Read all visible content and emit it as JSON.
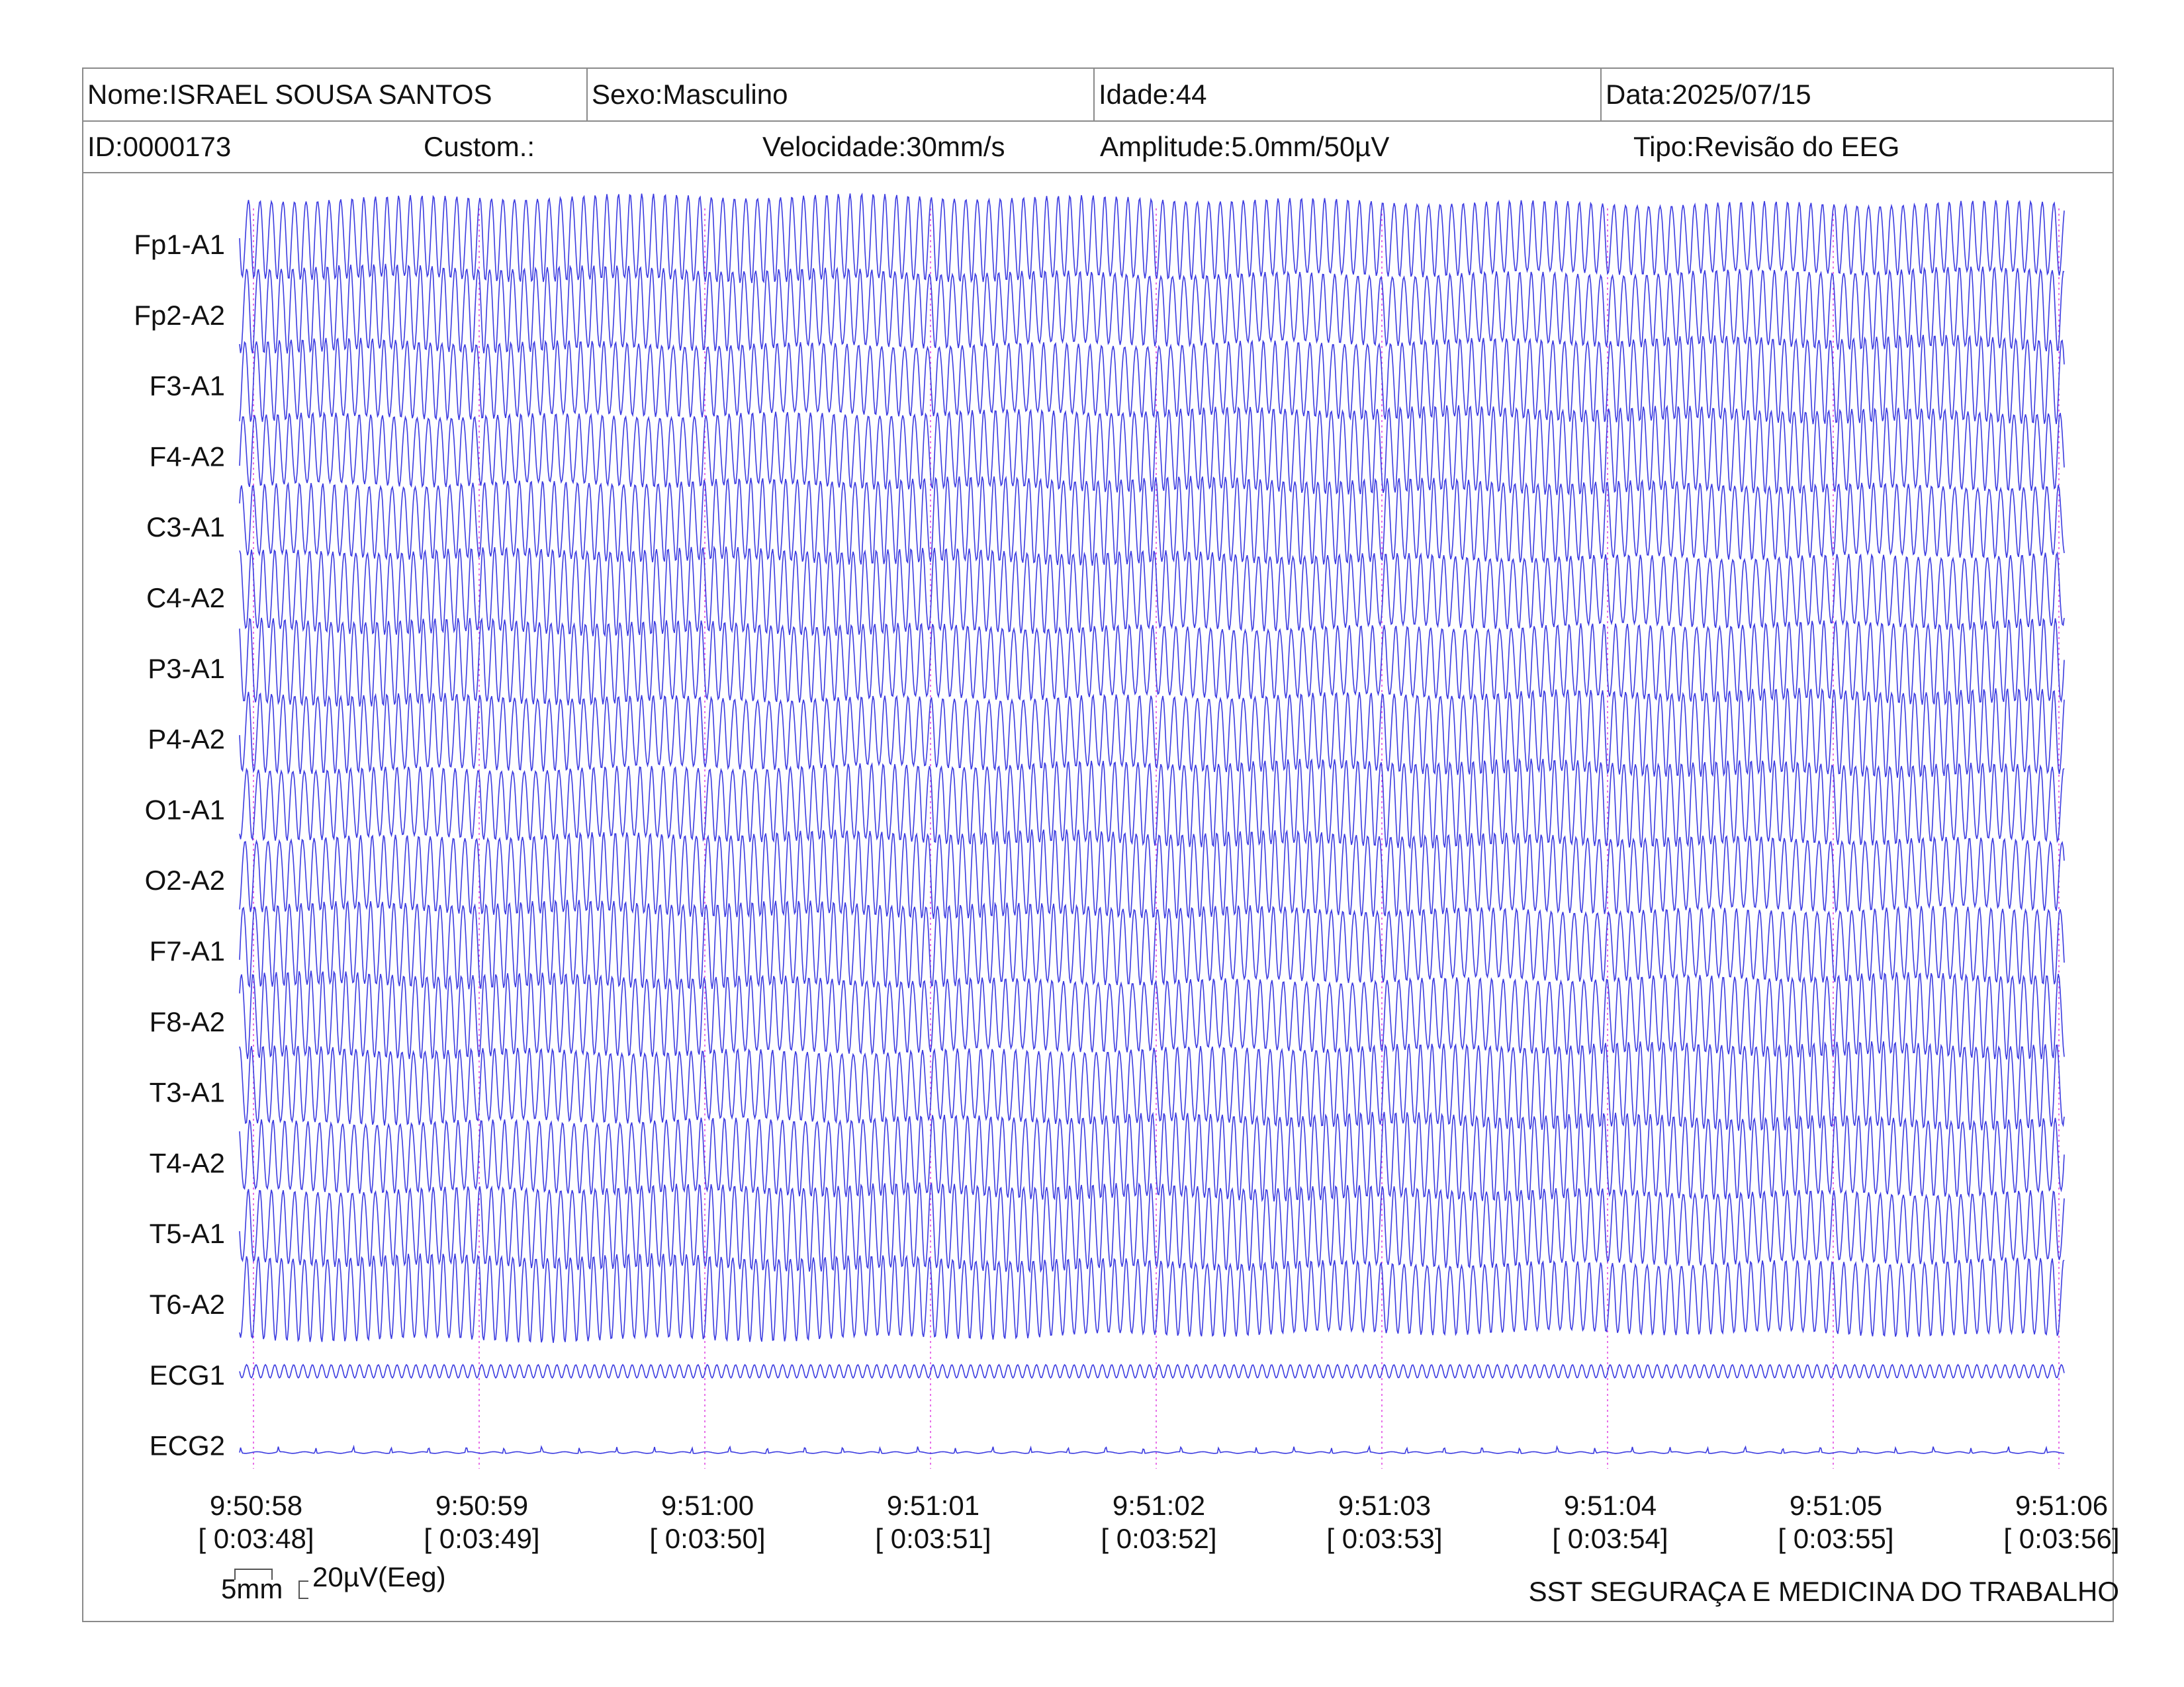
{
  "header": {
    "nome": "Nome:ISRAEL SOUSA SANTOS",
    "sexo": "Sexo:Masculino",
    "idade": "Idade:44",
    "data": "Data:2025/07/15",
    "id": "ID:0000173",
    "custom": "Custom.:",
    "velocidade": "Velocidade:30mm/s",
    "amplitude": "Amplitude:5.0mm/50µV",
    "tipo": "Tipo:Revisão do EEG"
  },
  "scale": {
    "mm_label": "5mm",
    "uv_label": "20µV(Eeg)"
  },
  "footer": {
    "company": "SST SEGURAÇA E MEDICINA DO TRABALHO"
  },
  "colors": {
    "trace": "#3b3be0",
    "marker": "#e040e0",
    "border": "#8a8a8a"
  },
  "chart_data": {
    "type": "line",
    "channels": [
      "Fp1-A1",
      "Fp2-A2",
      "F3-A1",
      "F4-A2",
      "C3-A1",
      "C4-A2",
      "P3-A1",
      "P4-A2",
      "O1-A1",
      "O2-A2",
      "F7-A1",
      "F8-A2",
      "T3-A1",
      "T4-A2",
      "T5-A1",
      "T6-A2",
      "ECG1",
      "ECG2"
    ],
    "time_ticks": [
      {
        "clock": "9:50:58",
        "elapsed": "[ 0:03:48]"
      },
      {
        "clock": "9:50:59",
        "elapsed": "[ 0:03:49]"
      },
      {
        "clock": "9:51:00",
        "elapsed": "[ 0:03:50]"
      },
      {
        "clock": "9:51:01",
        "elapsed": "[ 0:03:51]"
      },
      {
        "clock": "9:51:02",
        "elapsed": "[ 0:03:52]"
      },
      {
        "clock": "9:51:03",
        "elapsed": "[ 0:03:53]"
      },
      {
        "clock": "9:51:04",
        "elapsed": "[ 0:03:54]"
      },
      {
        "clock": "9:51:05",
        "elapsed": "[ 0:03:55]"
      },
      {
        "clock": "9:51:06",
        "elapsed": "[ 0:03:56]"
      }
    ],
    "eeg_cycles_per_second": 19.5,
    "ecg1_cycles_per_second": 24,
    "ecg2_beats_per_second": 6
  }
}
